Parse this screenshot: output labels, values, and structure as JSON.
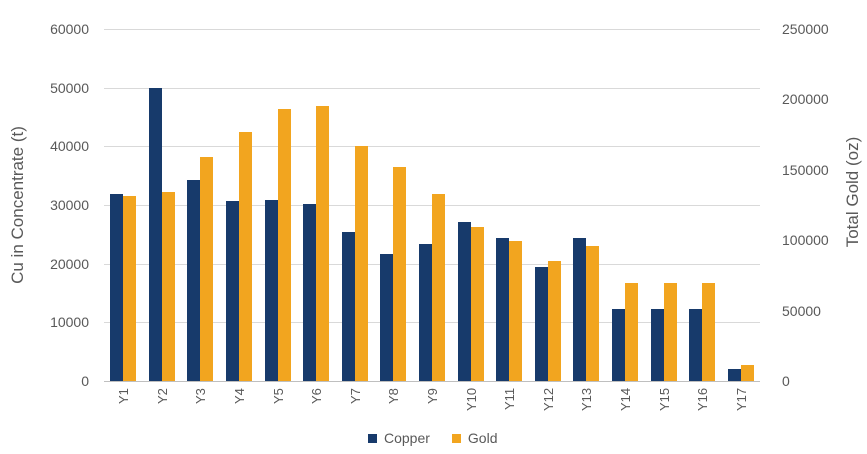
{
  "chart_data": {
    "type": "bar",
    "title": "",
    "xlabel": "",
    "ylabel": "Cu in Concentrate (t)",
    "ylabel_right": "Total Gold (oz)",
    "categories": [
      "Y1",
      "Y2",
      "Y3",
      "Y4",
      "Y5",
      "Y6",
      "Y7",
      "Y8",
      "Y9",
      "Y10",
      "Y11",
      "Y12",
      "Y13",
      "Y14",
      "Y15",
      "Y16",
      "Y17"
    ],
    "series": [
      {
        "name": "Copper",
        "axis": "left",
        "color": "#173a6b",
        "values": [
          31900,
          50000,
          34300,
          30600,
          30900,
          30200,
          25400,
          21700,
          23400,
          27100,
          24300,
          19400,
          24400,
          12300,
          12300,
          12300,
          2100
        ]
      },
      {
        "name": "Gold",
        "axis": "right",
        "color": "#f2a51f",
        "values": [
          131400,
          134400,
          158900,
          176800,
          193200,
          195300,
          167100,
          152000,
          132600,
          109400,
          99200,
          85400,
          95900,
          69600,
          69600,
          69600,
          11100
        ]
      }
    ],
    "ylim": [
      0,
      60000
    ],
    "ylim_right": [
      0,
      250000
    ],
    "yticks_left": [
      "60000",
      "50000",
      "40000",
      "30000",
      "20000",
      "10000",
      "0"
    ],
    "yticks_right": [
      "250000",
      "200000",
      "150000",
      "100000",
      "50000",
      "0"
    ],
    "grid": true,
    "legend_position": "bottom"
  },
  "axes": {
    "left_title": "Cu in Concentrate (t)",
    "right_title": "Total Gold (oz)"
  },
  "legend": {
    "copper": "Copper",
    "gold": "Gold"
  }
}
